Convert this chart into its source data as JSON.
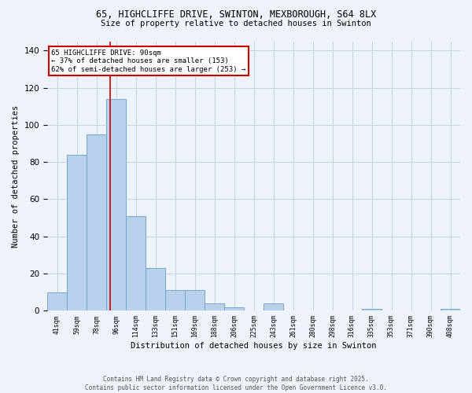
{
  "title_line1": "65, HIGHCLIFFE DRIVE, SWINTON, MEXBOROUGH, S64 8LX",
  "title_line2": "Size of property relative to detached houses in Swinton",
  "xlabel": "Distribution of detached houses by size in Swinton",
  "ylabel": "Number of detached properties",
  "categories": [
    "41sqm",
    "59sqm",
    "78sqm",
    "96sqm",
    "114sqm",
    "133sqm",
    "151sqm",
    "169sqm",
    "188sqm",
    "206sqm",
    "225sqm",
    "243sqm",
    "261sqm",
    "280sqm",
    "298sqm",
    "316sqm",
    "335sqm",
    "353sqm",
    "371sqm",
    "390sqm",
    "408sqm"
  ],
  "values": [
    10,
    84,
    95,
    114,
    51,
    23,
    11,
    11,
    4,
    2,
    0,
    4,
    0,
    0,
    0,
    0,
    1,
    0,
    0,
    0,
    1
  ],
  "bar_color": "#b8d0ea",
  "bar_edge_color": "#6a9fc8",
  "background_color": "#eef2fa",
  "grid_color": "#c8d0e0",
  "red_line_x": 2.7,
  "annotation_title": "65 HIGHCLIFFE DRIVE: 90sqm",
  "annotation_line2": "← 37% of detached houses are smaller (153)",
  "annotation_line3": "62% of semi-detached houses are larger (253) →",
  "annotation_box_color": "#ffffff",
  "annotation_edge_color": "#cc0000",
  "red_line_color": "#cc0000",
  "ylim": [
    0,
    145
  ],
  "yticks": [
    0,
    20,
    40,
    60,
    80,
    100,
    120,
    140
  ],
  "footer_line1": "Contains HM Land Registry data © Crown copyright and database right 2025.",
  "footer_line2": "Contains public sector information licensed under the Open Government Licence v3.0."
}
